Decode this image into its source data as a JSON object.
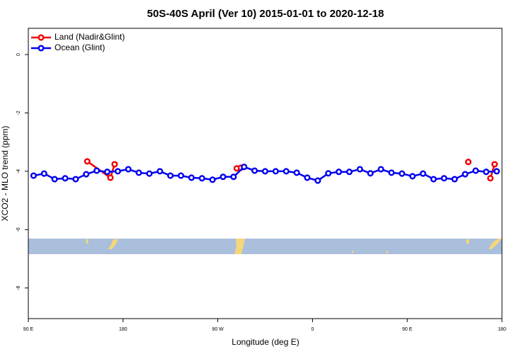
{
  "chart_data": {
    "type": "line",
    "title": "50S-40S April (Ver 10)   2015-01-01 to 2020-12-18",
    "x_label": "Longitude (deg E)",
    "y_label": "XCO2 - MLO trend (ppm)",
    "xlim": [
      90,
      540
    ],
    "xticks": [
      {
        "value": 90,
        "label": "90 E"
      },
      {
        "value": 180,
        "label": "180"
      },
      {
        "value": 270,
        "label": "90 W"
      },
      {
        "value": 360,
        "label": "0"
      },
      {
        "value": 450,
        "label": "90 E"
      },
      {
        "value": 540,
        "label": "180"
      }
    ],
    "ylim": [
      -9.05,
      0.9
    ],
    "yticks": [
      0,
      -2,
      -4,
      -6,
      -8
    ],
    "legend": "top-left",
    "series": [
      {
        "name": "Land (Nadir&Glint)",
        "color": "#ee0000",
        "x": [
          146,
          168,
          172,
          null,
          288,
          292,
          null,
          508,
          null,
          529,
          533
        ],
        "values": [
          -3.66,
          -4.22,
          -3.76,
          null,
          -3.9,
          -3.88,
          null,
          -3.68,
          null,
          -4.24,
          -3.76
        ]
      },
      {
        "name": "Ocean (Glint)",
        "color": "#0000ee",
        "x": [
          95,
          105,
          115,
          125,
          135,
          145,
          155,
          165,
          175,
          185,
          195,
          205,
          215,
          225,
          235,
          245,
          255,
          265,
          275,
          285,
          295,
          305,
          315,
          325,
          335,
          345,
          355,
          365,
          375,
          385,
          395,
          405,
          415,
          425,
          435,
          445,
          455,
          465,
          475,
          485,
          495,
          505,
          515,
          525,
          535
        ],
        "values": [
          -4.15,
          -4.08,
          -4.27,
          -4.24,
          -4.27,
          -4.1,
          -3.98,
          -4.02,
          -4.0,
          -3.93,
          -4.05,
          -4.08,
          -4.0,
          -4.15,
          -4.15,
          -4.22,
          -4.24,
          -4.29,
          -4.19,
          -4.19,
          -3.85,
          -3.98,
          -4.0,
          -4.0,
          -4.0,
          -4.05,
          -4.22,
          -4.32,
          -4.07,
          -4.02,
          -4.02,
          -3.93,
          -4.07,
          -3.93,
          -4.05,
          -4.08,
          -4.17,
          -4.08,
          -4.27,
          -4.24,
          -4.27,
          -4.1,
          -3.98,
          -4.02,
          -4.0
        ]
      }
    ]
  }
}
